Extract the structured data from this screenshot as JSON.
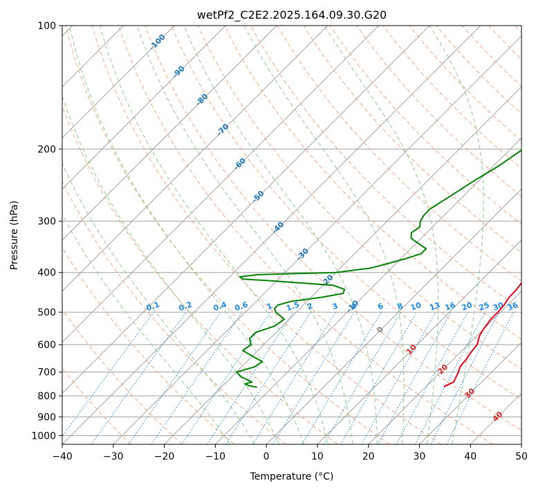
{
  "chart_data": {
    "type": "line",
    "title": "wetPf2_C2E2.2025.164.09.30.G20",
    "xlabel": "Temperature (°C)",
    "ylabel": "Pressure (hPa)",
    "xlim": [
      -40,
      50
    ],
    "ylim": [
      1050,
      100
    ],
    "y_scale": "log",
    "grid": true,
    "x_ticks": [
      -40,
      -30,
      -20,
      -10,
      0,
      10,
      20,
      30,
      40,
      50
    ],
    "y_ticks": [
      100,
      200,
      300,
      400,
      500,
      600,
      700,
      800,
      900,
      1000
    ],
    "colors": {
      "temperature": "#e8001c",
      "dewpoint": "#008000",
      "isotherm": "#a0a0a0",
      "dry_adiabat": "#f4a582",
      "moist_adiabat": "#8fc98f",
      "mixing_ratio": "#1e88e5",
      "label_blue": "#1f78b4",
      "label_red": "#d62728",
      "label_gray": "#808080"
    },
    "series": [
      {
        "key": "temperature",
        "pressure": [
          760,
          740,
          720,
          700,
          680,
          650,
          620,
          600,
          570,
          550,
          520,
          500,
          480,
          460,
          440,
          420,
          400,
          380,
          360,
          345,
          330,
          310,
          290,
          270,
          250,
          235,
          220,
          210,
          200,
          190,
          180,
          170,
          160,
          150,
          140,
          130,
          120,
          110,
          100
        ],
        "temp": [
          23.5,
          24.5,
          24.0,
          23.5,
          22.8,
          22.5,
          22.0,
          21.8,
          20.5,
          20.0,
          19.5,
          19.5,
          19.3,
          18.8,
          18.7,
          18.3,
          16.5,
          15.0,
          13.5,
          12.5,
          12.3,
          11.8,
          10.8,
          9.8,
          8.5,
          7.5,
          6.8,
          6.0,
          4.5,
          3.5,
          2.2,
          1.0,
          0.2,
          -0.3,
          -0.5,
          0.5,
          1.5,
          1.8,
          1.5
        ]
      },
      {
        "key": "dewpoint",
        "pressure": [
          762,
          755,
          748,
          740,
          720,
          700,
          680,
          660,
          640,
          620,
          600,
          580,
          560,
          540,
          520,
          500,
          490,
          480,
          470,
          460,
          450,
          440,
          430,
          420,
          415,
          410,
          405,
          400,
          390,
          380,
          370,
          360,
          350,
          340,
          330,
          320,
          310,
          300,
          290,
          280,
          260,
          240,
          220,
          200,
          190,
          180,
          170,
          160,
          150,
          140,
          130,
          120,
          110,
          100
        ],
        "temp": [
          -13,
          -15,
          -16,
          -15,
          -18,
          -20,
          -17.5,
          -17,
          -20,
          -23,
          -22.5,
          -24,
          -24,
          -21.5,
          -21,
          -24,
          -25,
          -25,
          -23,
          -18,
          -14.5,
          -15,
          -18,
          -30,
          -37,
          -38,
          -35,
          -20,
          -14,
          -11.5,
          -9,
          -7,
          -7,
          -9.5,
          -12,
          -13,
          -12.5,
          -13.5,
          -14,
          -14,
          -12.5,
          -11,
          -9,
          -7.5,
          -5.5,
          -4,
          -3.5,
          -4,
          -4.5,
          -3,
          -1.5,
          0.5,
          2.5,
          5.5
        ]
      }
    ],
    "dry_adiabat_labels": [
      "-100",
      "-90",
      "-80",
      "-70",
      "-60",
      "-50",
      "-40",
      "-30",
      "-20",
      "-10",
      "0",
      "10",
      "20",
      "30",
      "40"
    ],
    "mixing_ratio_labels": [
      "0.1",
      "0.2",
      "0.4",
      "0.6",
      "1",
      "1.5",
      "2",
      "3",
      "4",
      "6",
      "8",
      "10",
      "13",
      "16",
      "20",
      "25",
      "30",
      "36"
    ]
  }
}
